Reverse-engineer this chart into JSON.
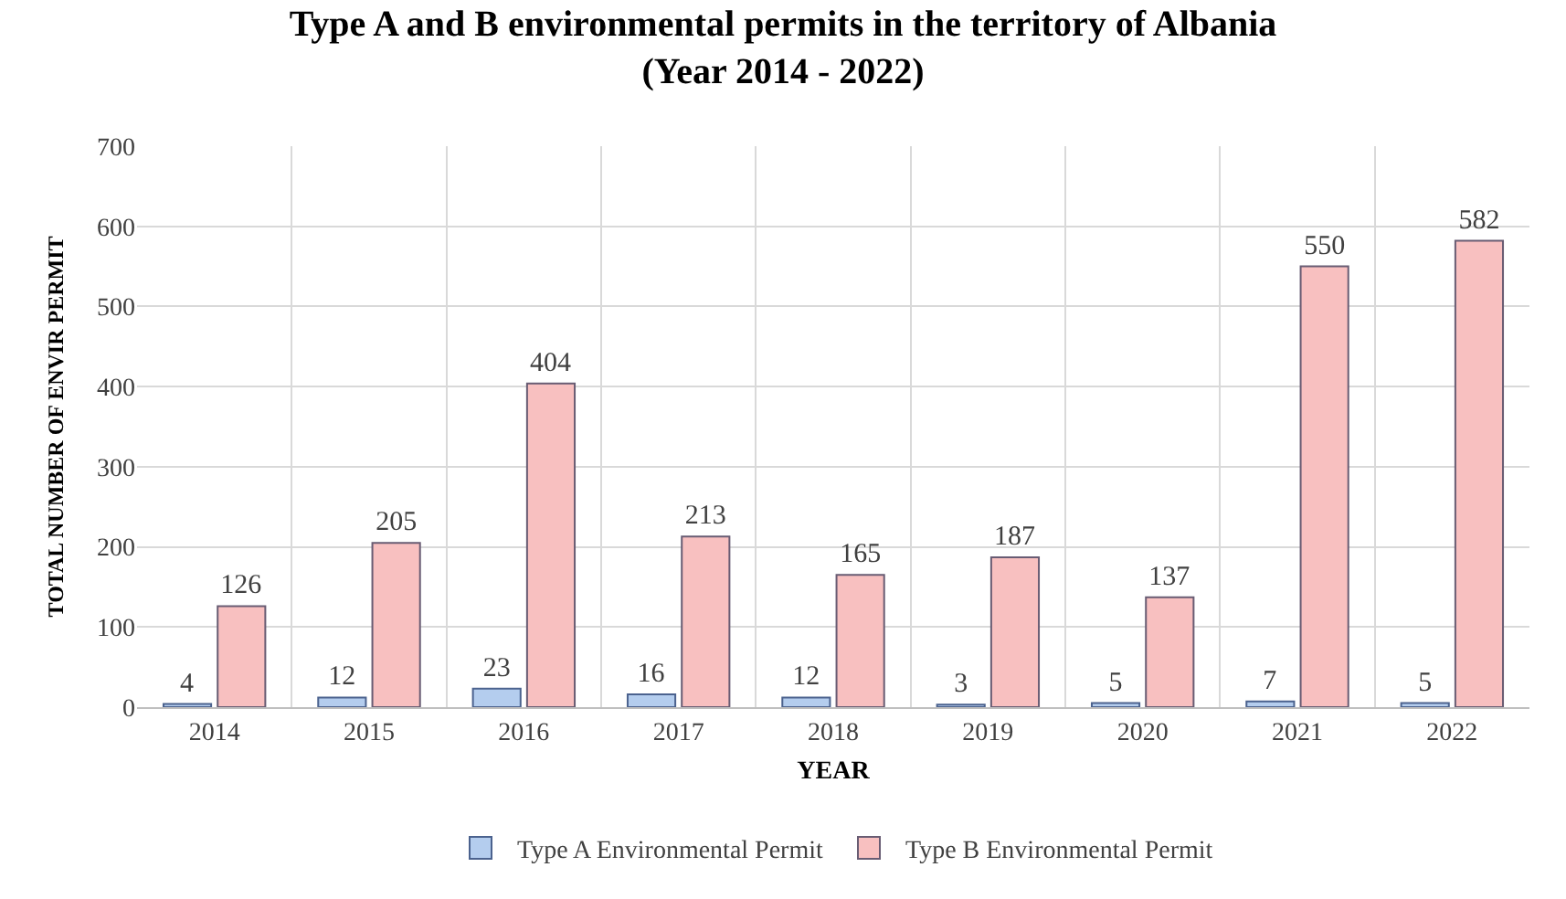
{
  "chart_data": {
    "type": "bar",
    "title": "Type A and B environmental permits in the territory of Albania\n(Year 2014 - 2022)",
    "xlabel": "YEAR",
    "ylabel": "TOTAL NUMBER OF ENVIR PERMIT",
    "categories": [
      "2014",
      "2015",
      "2016",
      "2017",
      "2018",
      "2019",
      "2020",
      "2021",
      "2022"
    ],
    "series": [
      {
        "name": "Type A Environmental Permit",
        "color": "#b4cdee",
        "values": [
          4,
          12,
          23,
          16,
          12,
          3,
          5,
          7,
          5
        ]
      },
      {
        "name": "Type B Environmental Permit",
        "color": "#f8c0c0",
        "values": [
          126,
          205,
          404,
          213,
          165,
          187,
          137,
          550,
          582
        ]
      }
    ],
    "ylim": [
      0,
      700
    ],
    "yticks": [
      0,
      100,
      200,
      300,
      400,
      500,
      600,
      700
    ],
    "grid": true,
    "data_labels": true,
    "legend": "bottom"
  }
}
